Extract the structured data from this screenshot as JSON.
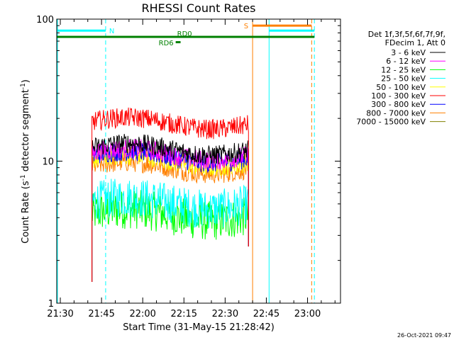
{
  "chart_data": {
    "type": "line",
    "title": "RHESSI Count Rates",
    "xlabel": "Start Time (31-May-15 21:28:42)",
    "ylabel_main": "Count Rate (s",
    "ylabel_exp1": "-1",
    "ylabel_mid": " detector segment",
    "ylabel_exp2": "-1",
    "ylabel_end": ")",
    "y_scale": "log",
    "ylim": [
      1,
      100
    ],
    "xlim": [
      "21:28:42",
      "23:12:00"
    ],
    "x_ticks": [
      "21:30",
      "21:45",
      "22:00",
      "22:15",
      "22:30",
      "22:45",
      "23:00"
    ],
    "y_ticks": [
      "1",
      "10",
      "100"
    ],
    "legend_header": [
      "Det 1f,3f,5f,6f,7f,9f,",
      "FDecim 1, Att 0"
    ],
    "series": [
      {
        "name": "3 - 6 keV",
        "color": "#000000",
        "level": 12.5
      },
      {
        "name": "6 - 12 keV",
        "color": "#ff00ff",
        "level": 11.5
      },
      {
        "name": "12 - 25 keV",
        "color": "#00ff00",
        "level": 4.3
      },
      {
        "name": "25 - 50 keV",
        "color": "#00ffff",
        "level": 5.2
      },
      {
        "name": "50 - 100 keV",
        "color": "#ffff00",
        "level": 10.3
      },
      {
        "name": "100 - 300 keV",
        "color": "#ff0000",
        "level": 19.0
      },
      {
        "name": "300 - 800 keV",
        "color": "#0000ff",
        "level": 11.0
      },
      {
        "name": "800 - 7000 keV",
        "color": "#ff8000",
        "level": 9.2
      },
      {
        "name": "7000 - 15000 keV",
        "color": "#808000",
        "level": 10.0
      }
    ],
    "data_interval": [
      "21:41:30",
      "22:38:30"
    ],
    "annotations": {
      "night_label": "N",
      "saa_label": "S",
      "rd0_label": "RD0",
      "rd6_label": "RD6"
    },
    "intervals": {
      "night_1": [
        "21:28:42",
        "21:46:30"
      ],
      "night_2": [
        "22:46:00",
        "23:02:30"
      ],
      "saa_1": [
        "22:40:00",
        "23:01:30"
      ],
      "rd0": [
        "21:28:42",
        "23:02:30"
      ],
      "rd6": [
        "22:12:00",
        "22:13:00"
      ]
    },
    "colors": {
      "night": "#00ffff",
      "saa": "#ff8000",
      "decimation": "#008000"
    }
  },
  "timestamp": "26-Oct-2021 09:47"
}
